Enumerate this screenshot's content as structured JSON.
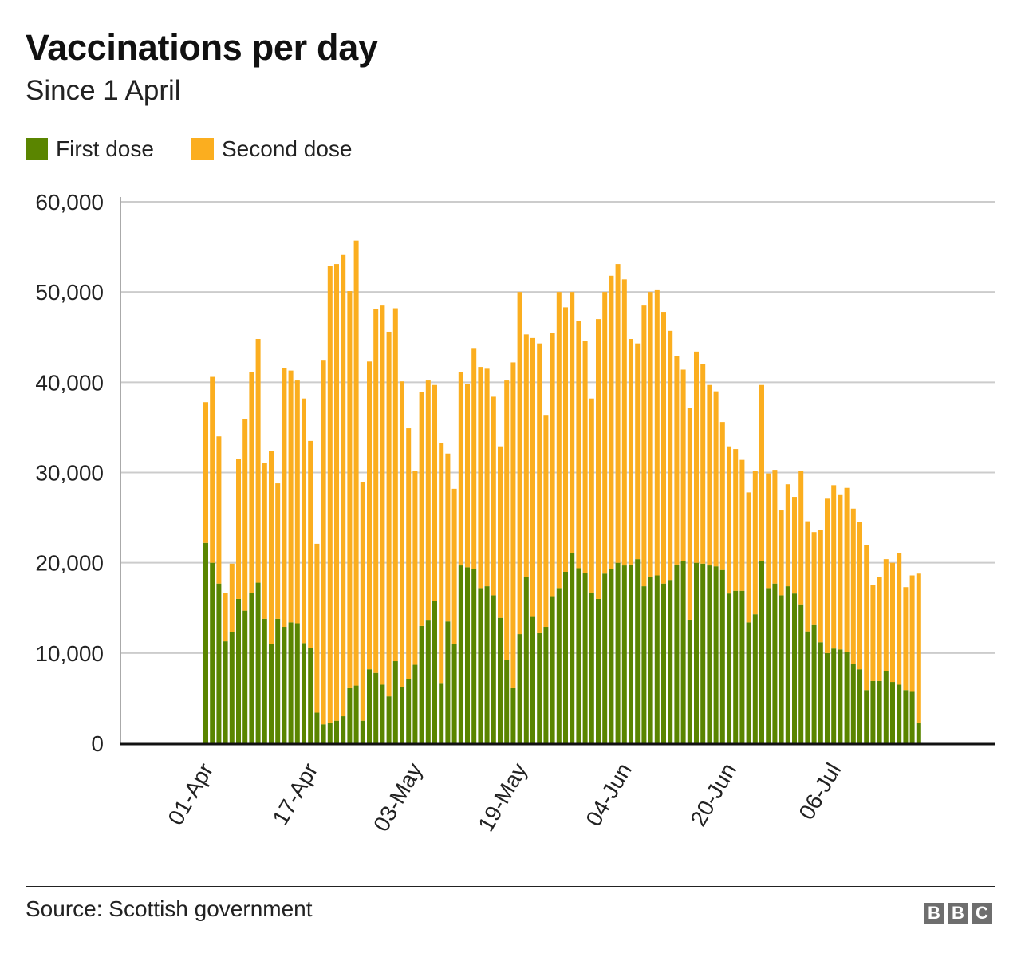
{
  "chart_data": {
    "type": "bar",
    "stacked": true,
    "title": "Vaccinations per day",
    "subtitle": "Since 1 April",
    "source": "Source: Scottish government",
    "logo_text": [
      "B",
      "B",
      "C"
    ],
    "legend_position": "top-left",
    "grid": true,
    "ylim": [
      0,
      60000
    ],
    "yticks": [
      0,
      10000,
      20000,
      30000,
      40000,
      50000,
      60000
    ],
    "ytick_labels": [
      "0",
      "10,000",
      "20,000",
      "30,000",
      "40,000",
      "50,000",
      "60,000"
    ],
    "xlim": [
      "30-Mar",
      "21-Jul"
    ],
    "xtick_labels": [
      "01-Apr",
      "17-Apr",
      "03-May",
      "19-May",
      "04-Jun",
      "20-Jun",
      "06-Jul"
    ],
    "colors": {
      "first_dose": "#5a8500",
      "second_dose": "#fbae1f",
      "gridline": "#cccccc",
      "axis": "#111111"
    },
    "series": [
      {
        "name": "First dose",
        "values": [
          22200,
          20000,
          17700,
          11300,
          12300,
          16000,
          14700,
          16700,
          17800,
          13800,
          11000,
          13800,
          12900,
          13400,
          13300,
          11100,
          10600,
          3400,
          2100,
          2300,
          2500,
          3000,
          6100,
          6400,
          2500,
          8200,
          7800,
          6500,
          5200,
          9100,
          6200,
          7100,
          8700,
          13000,
          13600,
          15800,
          6600,
          13500,
          11000,
          19700,
          19500,
          19300,
          17200,
          17400,
          16400,
          13900,
          9200,
          6100,
          12100,
          18400,
          14000,
          12200,
          12900,
          16300,
          17200,
          19000,
          21100,
          19400,
          18900,
          16700,
          16000,
          18800,
          19300,
          20000,
          19700,
          19800,
          20400,
          17400,
          18400,
          18600,
          17700,
          18100,
          19800,
          20200,
          13700,
          20000,
          19900,
          19700,
          19600,
          19200,
          16600,
          16900,
          16900,
          13400,
          14300,
          20200,
          17200,
          17700,
          16400,
          17400,
          16600,
          15400,
          12400,
          13100,
          11200,
          10000,
          10500,
          10400,
          10100,
          8800,
          8200,
          5900,
          6900,
          6900,
          8000,
          6800,
          6500,
          5900,
          5700,
          2300
        ]
      },
      {
        "name": "Second dose",
        "values": [
          15600,
          20600,
          16300,
          5400,
          7600,
          15500,
          21200,
          24400,
          27000,
          17300,
          21400,
          15000,
          28700,
          27900,
          26900,
          27100,
          22900,
          18700,
          40300,
          50600,
          50600,
          51100,
          44000,
          49300,
          26400,
          34100,
          40300,
          42000,
          40400,
          39100,
          33900,
          27800,
          21500,
          25900,
          26600,
          23900,
          26700,
          18600,
          17200,
          21400,
          20300,
          24500,
          24500,
          24100,
          22000,
          19000,
          31000,
          36100,
          37900,
          26900,
          30900,
          32100,
          23400,
          29200,
          32800,
          29300,
          28900,
          27400,
          25700,
          21500,
          31000,
          31200,
          32500,
          33100,
          31700,
          25000,
          23900,
          31100,
          31600,
          31600,
          30100,
          27600,
          23100,
          21200,
          23500,
          23400,
          22100,
          20000,
          19400,
          16400,
          16300,
          15700,
          14500,
          14400,
          15900,
          19500,
          12700,
          12600,
          9400,
          11300,
          10700,
          14800,
          12200,
          10300,
          12400,
          17100,
          18100,
          17100,
          18200,
          17200,
          16300,
          16100,
          10600,
          11500,
          12400,
          13200,
          14600,
          11400,
          12900,
          16500
        ]
      }
    ]
  }
}
